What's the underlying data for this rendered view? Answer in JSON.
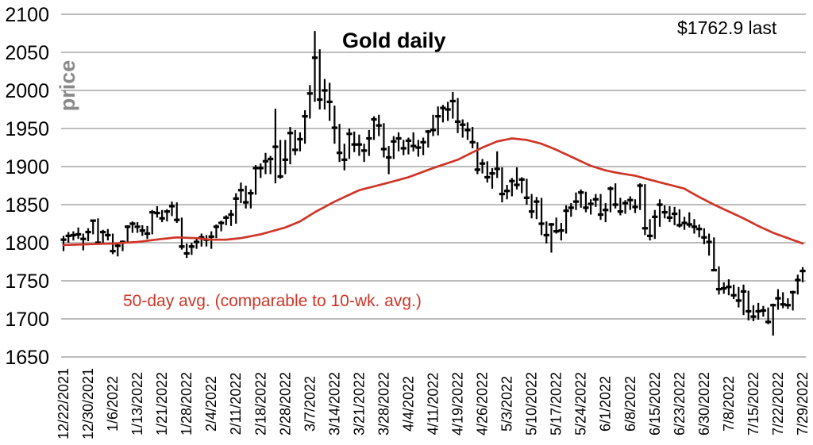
{
  "page": {
    "title": "Gold daily",
    "last_price_label": "$1762.9 last",
    "avg_annotation": "50-day avg. (comparable to 10-wk. avg.)",
    "y_axis_title": "price"
  },
  "colors": {
    "bars": "#000000",
    "avg_line": "#cf3527",
    "annotation_red": "#cf3527",
    "gridline": "#a6a6a6",
    "axis_text": "#000000",
    "y_axis_title_gray": "#8a8a8a"
  },
  "chart_data": {
    "type": "ohlc-bar",
    "title": "Gold daily",
    "ylabel": "price",
    "ylim": [
      1650,
      2100
    ],
    "y_ticks": [
      2100,
      2050,
      2000,
      1950,
      1900,
      1850,
      1800,
      1750,
      1700,
      1650
    ],
    "grid": "horizontal",
    "legend": "none",
    "last_close": 1762.9,
    "x_tick_every": 5,
    "x_tick_labels": [
      "12/22/2021",
      "12/30/2021",
      "1/6/2022",
      "1/13/2022",
      "1/21/2022",
      "1/28/2022",
      "2/4/2022",
      "2/11/2022",
      "2/18/2022",
      "2/28/2022",
      "3/7/2022",
      "3/14/2022",
      "3/21/2022",
      "3/28/2022",
      "4/4/2022",
      "4/11/2022",
      "4/19/2022",
      "4/26/2022",
      "5/3/2022",
      "5/10/2022",
      "5/17/2022",
      "5/24/2022",
      "6/1/2022",
      "6/8/2022",
      "6/15/2022",
      "6/23/2022",
      "6/30/2022",
      "7/8/2022",
      "7/15/2022",
      "7/22/2022",
      "7/29/2022"
    ],
    "dates": [
      "12/22",
      "12/23",
      "12/27",
      "12/28",
      "12/29",
      "12/30",
      "12/31",
      "1/3",
      "1/4",
      "1/5",
      "1/6",
      "1/7",
      "1/10",
      "1/11",
      "1/12",
      "1/13",
      "1/14",
      "1/18",
      "1/19",
      "1/20",
      "1/21",
      "1/24",
      "1/25",
      "1/26",
      "1/27",
      "1/28",
      "1/31",
      "2/1",
      "2/2",
      "2/3",
      "2/4",
      "2/7",
      "2/8",
      "2/9",
      "2/10",
      "2/11",
      "2/14",
      "2/15",
      "2/16",
      "2/17",
      "2/18",
      "2/22",
      "2/23",
      "2/24",
      "2/25",
      "2/28",
      "3/1",
      "3/2",
      "3/3",
      "3/4",
      "3/7",
      "3/8",
      "3/9",
      "3/10",
      "3/11",
      "3/14",
      "3/15",
      "3/16",
      "3/17",
      "3/18",
      "3/21",
      "3/22",
      "3/23",
      "3/24",
      "3/25",
      "3/28",
      "3/29",
      "3/30",
      "3/31",
      "4/1",
      "4/4",
      "4/5",
      "4/6",
      "4/7",
      "4/8",
      "4/11",
      "4/12",
      "4/13",
      "4/14",
      "4/18",
      "4/19",
      "4/20",
      "4/21",
      "4/22",
      "4/25",
      "4/26",
      "4/27",
      "4/28",
      "4/29",
      "5/2",
      "5/3",
      "5/4",
      "5/5",
      "5/6",
      "5/9",
      "5/10",
      "5/11",
      "5/12",
      "5/13",
      "5/16",
      "5/17",
      "5/18",
      "5/19",
      "5/20",
      "5/23",
      "5/24",
      "5/25",
      "5/26",
      "5/27",
      "5/31",
      "6/1",
      "6/2",
      "6/3",
      "6/6",
      "6/7",
      "6/8",
      "6/9",
      "6/10",
      "6/13",
      "6/14",
      "6/15",
      "6/16",
      "6/17",
      "6/21",
      "6/22",
      "6/23",
      "6/24",
      "6/27",
      "6/28",
      "6/29",
      "6/30",
      "7/1",
      "7/5",
      "7/6",
      "7/7",
      "7/8",
      "7/11",
      "7/12",
      "7/13",
      "7/14",
      "7/15",
      "7/18",
      "7/19",
      "7/20",
      "7/21",
      "7/22",
      "7/25",
      "7/26",
      "7/27",
      "7/28",
      "7/29"
    ],
    "high": [
      1809,
      1814,
      1815,
      1820,
      1812,
      1819,
      1830,
      1832,
      1817,
      1818,
      1812,
      1798,
      1803,
      1823,
      1828,
      1827,
      1823,
      1822,
      1843,
      1848,
      1843,
      1844,
      1854,
      1853,
      1833,
      1799,
      1800,
      1807,
      1812,
      1810,
      1815,
      1824,
      1829,
      1836,
      1843,
      1865,
      1879,
      1875,
      1870,
      1902,
      1904,
      1918,
      1914,
      1976,
      1935,
      1935,
      1952,
      1948,
      1945,
      1974,
      2007,
      2078,
      2054,
      2015,
      2010,
      1980,
      1956,
      1930,
      1950,
      1946,
      1942,
      1930,
      1948,
      1966,
      1968,
      1957,
      1927,
      1940,
      1945,
      1935,
      1938,
      1945,
      1935,
      1938,
      1948,
      1968,
      1979,
      1981,
      1985,
      1998,
      1990,
      1962,
      1958,
      1952,
      1932,
      1910,
      1907,
      1898,
      1920,
      1899,
      1876,
      1885,
      1899,
      1886,
      1884,
      1864,
      1860,
      1859,
      1828,
      1826,
      1833,
      1826,
      1849,
      1852,
      1866,
      1870,
      1867,
      1857,
      1864,
      1864,
      1852,
      1874,
      1878,
      1859,
      1856,
      1861,
      1857,
      1878,
      1877,
      1831,
      1843,
      1857,
      1849,
      1848,
      1847,
      1844,
      1834,
      1840,
      1831,
      1824,
      1819,
      1812,
      1807,
      1769,
      1748,
      1752,
      1745,
      1742,
      1745,
      1737,
      1718,
      1721,
      1717,
      1715,
      1720,
      1739,
      1735,
      1727,
      1737,
      1758,
      1768
    ],
    "low": [
      1789,
      1800,
      1803,
      1805,
      1790,
      1802,
      1811,
      1798,
      1799,
      1803,
      1785,
      1782,
      1789,
      1799,
      1813,
      1813,
      1809,
      1805,
      1811,
      1833,
      1827,
      1828,
      1835,
      1826,
      1791,
      1780,
      1784,
      1792,
      1795,
      1795,
      1792,
      1806,
      1815,
      1823,
      1822,
      1825,
      1852,
      1845,
      1845,
      1863,
      1885,
      1890,
      1890,
      1878,
      1884,
      1890,
      1903,
      1915,
      1920,
      1930,
      1963,
      1985,
      1975,
      1975,
      1960,
      1930,
      1906,
      1895,
      1910,
      1919,
      1914,
      1906,
      1914,
      1935,
      1940,
      1912,
      1890,
      1910,
      1920,
      1915,
      1916,
      1920,
      1913,
      1915,
      1925,
      1940,
      1941,
      1958,
      1960,
      1963,
      1944,
      1938,
      1935,
      1924,
      1890,
      1891,
      1879,
      1871,
      1885,
      1853,
      1857,
      1861,
      1870,
      1865,
      1850,
      1832,
      1831,
      1810,
      1799,
      1787,
      1812,
      1803,
      1812,
      1834,
      1843,
      1846,
      1840,
      1837,
      1847,
      1830,
      1827,
      1840,
      1845,
      1836,
      1838,
      1843,
      1839,
      1843,
      1810,
      1803,
      1805,
      1821,
      1832,
      1827,
      1823,
      1820,
      1817,
      1820,
      1812,
      1807,
      1798,
      1783,
      1763,
      1732,
      1733,
      1731,
      1726,
      1715,
      1705,
      1698,
      1697,
      1699,
      1703,
      1693,
      1678,
      1712,
      1714,
      1713,
      1711,
      1732,
      1748
    ],
    "close": [
      1804,
      1809,
      1810,
      1811,
      1805,
      1814,
      1829,
      1800,
      1814,
      1810,
      1789,
      1796,
      1801,
      1821,
      1825,
      1821,
      1816,
      1812,
      1840,
      1839,
      1832,
      1841,
      1848,
      1830,
      1795,
      1786,
      1795,
      1801,
      1807,
      1804,
      1808,
      1821,
      1826,
      1833,
      1837,
      1858,
      1869,
      1853,
      1865,
      1898,
      1898,
      1907,
      1910,
      1926,
      1887,
      1909,
      1944,
      1922,
      1936,
      1966,
      1996,
      2043,
      1988,
      2000,
      1985,
      1951,
      1918,
      1909,
      1943,
      1929,
      1929,
      1921,
      1937,
      1962,
      1954,
      1923,
      1912,
      1933,
      1937,
      1924,
      1934,
      1927,
      1925,
      1932,
      1946,
      1948,
      1966,
      1977,
      1975,
      1986,
      1959,
      1955,
      1948,
      1932,
      1896,
      1904,
      1886,
      1891,
      1897,
      1864,
      1868,
      1881,
      1876,
      1883,
      1859,
      1841,
      1854,
      1825,
      1810,
      1824,
      1815,
      1816,
      1842,
      1846,
      1854,
      1866,
      1846,
      1851,
      1857,
      1837,
      1843,
      1871,
      1850,
      1841,
      1852,
      1856,
      1847,
      1875,
      1819,
      1809,
      1834,
      1850,
      1840,
      1833,
      1838,
      1823,
      1826,
      1824,
      1821,
      1818,
      1807,
      1801,
      1764,
      1739,
      1740,
      1742,
      1731,
      1724,
      1736,
      1710,
      1703,
      1710,
      1711,
      1696,
      1718,
      1727,
      1719,
      1718,
      1735,
      1751,
      1762.9
    ],
    "avg_series": {
      "name": "50-day avg. (comparable to 10-wk. avg.)",
      "points_day_value": [
        [
          0,
          1797
        ],
        [
          5,
          1798
        ],
        [
          10,
          1799
        ],
        [
          15,
          1801
        ],
        [
          20,
          1805
        ],
        [
          23,
          1807
        ],
        [
          27,
          1806
        ],
        [
          30,
          1804
        ],
        [
          33,
          1804
        ],
        [
          36,
          1806
        ],
        [
          40,
          1811
        ],
        [
          45,
          1820
        ],
        [
          48,
          1828
        ],
        [
          51,
          1840
        ],
        [
          55,
          1854
        ],
        [
          60,
          1869
        ],
        [
          63,
          1874
        ],
        [
          66,
          1879
        ],
        [
          70,
          1886
        ],
        [
          75,
          1898
        ],
        [
          80,
          1909
        ],
        [
          85,
          1925
        ],
        [
          88,
          1933
        ],
        [
          91,
          1937
        ],
        [
          94,
          1935
        ],
        [
          97,
          1930
        ],
        [
          100,
          1922
        ],
        [
          104,
          1910
        ],
        [
          107,
          1901
        ],
        [
          110,
          1895
        ],
        [
          113,
          1891
        ],
        [
          116,
          1888
        ],
        [
          120,
          1881
        ],
        [
          123,
          1876
        ],
        [
          126,
          1871
        ],
        [
          129,
          1860
        ],
        [
          132,
          1850
        ],
        [
          135,
          1841
        ],
        [
          138,
          1832
        ],
        [
          141,
          1822
        ],
        [
          144,
          1813
        ],
        [
          147,
          1806
        ],
        [
          150,
          1799
        ]
      ]
    }
  }
}
